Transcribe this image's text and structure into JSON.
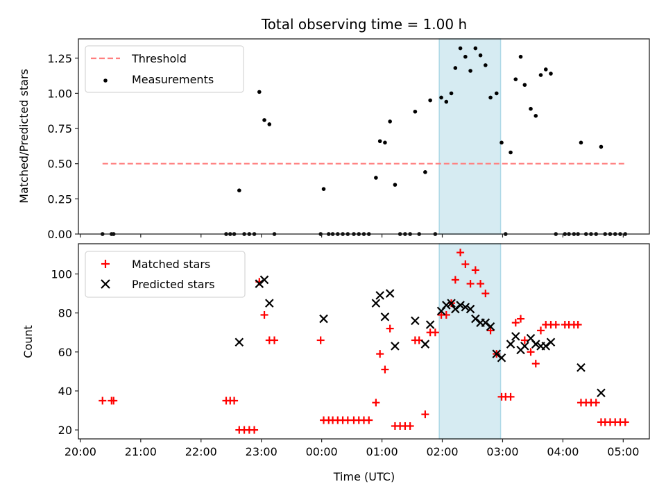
{
  "chart_data": [
    {
      "panel": "top",
      "type": "scatter",
      "title": "Total observing time = 1.00 h",
      "xlabel": "",
      "ylabel": "Matched/Predicted stars",
      "x_range": [
        "19:58",
        "05:26"
      ],
      "ylim": [
        0,
        1.387
      ],
      "yticks": [
        0,
        0.25,
        0.5,
        0.75,
        1.0,
        1.25
      ],
      "ytick_labels": [
        "0.00",
        "0.25",
        "0.50",
        "0.75",
        "1.00",
        "1.25"
      ],
      "xticks": [
        "20:00",
        "21:00",
        "22:00",
        "23:00",
        "00:00",
        "01:00",
        "02:00",
        "03:00",
        "04:00",
        "05:00"
      ],
      "xtick_labels_visible": false,
      "grid": false,
      "legend": {
        "placement": "top-left",
        "entries": [
          {
            "label": "Threshold",
            "marker": "dashed-line",
            "color": "#ff7f7f"
          },
          {
            "label": "Measurements",
            "marker": "dot",
            "color": "#000000"
          }
        ]
      },
      "threshold": {
        "value": 0.5,
        "x_start": "20:22",
        "x_end": "05:02",
        "color": "#ff7f7f"
      },
      "highlight_span": {
        "x_start": "01:57",
        "x_end": "02:58",
        "color": "#add8e6"
      },
      "series": [
        {
          "name": "Measurements",
          "color": "#000000",
          "points": [
            [
              "20:22",
              0
            ],
            [
              "20:31",
              0
            ],
            [
              "20:33",
              0
            ],
            [
              "22:25",
              0
            ],
            [
              "22:29",
              0
            ],
            [
              "22:33",
              0
            ],
            [
              "22:38",
              0.31
            ],
            [
              "22:43",
              0
            ],
            [
              "22:48",
              0
            ],
            [
              "22:53",
              0
            ],
            [
              "22:58",
              1.01
            ],
            [
              "23:03",
              0.81
            ],
            [
              "23:08",
              0.78
            ],
            [
              "23:13",
              0
            ],
            [
              "23:59",
              0
            ],
            [
              "00:02",
              0.32
            ],
            [
              "00:07",
              0
            ],
            [
              "00:11",
              0
            ],
            [
              "00:16",
              0
            ],
            [
              "00:21",
              0
            ],
            [
              "00:26",
              0
            ],
            [
              "00:32",
              0
            ],
            [
              "00:37",
              0
            ],
            [
              "00:42",
              0
            ],
            [
              "00:47",
              0
            ],
            [
              "00:54",
              0.4
            ],
            [
              "00:58",
              0.66
            ],
            [
              "01:03",
              0.65
            ],
            [
              "01:08",
              0.8
            ],
            [
              "01:13",
              0.35
            ],
            [
              "01:18",
              0
            ],
            [
              "01:23",
              0
            ],
            [
              "01:28",
              0
            ],
            [
              "01:33",
              0.87
            ],
            [
              "01:37",
              0
            ],
            [
              "01:43",
              0.44
            ],
            [
              "01:48",
              0.95
            ],
            [
              "01:53",
              0
            ],
            [
              "01:59",
              0.97
            ],
            [
              "02:04",
              0.94
            ],
            [
              "02:09",
              1.0
            ],
            [
              "02:13",
              1.18
            ],
            [
              "02:18",
              1.32
            ],
            [
              "02:23",
              1.26
            ],
            [
              "02:28",
              1.16
            ],
            [
              "02:33",
              1.32
            ],
            [
              "02:38",
              1.27
            ],
            [
              "02:43",
              1.2
            ],
            [
              "02:48",
              0.97
            ],
            [
              "02:54",
              1.0
            ],
            [
              "02:59",
              0.65
            ],
            [
              "03:03",
              0
            ],
            [
              "03:08",
              0.58
            ],
            [
              "03:13",
              1.1
            ],
            [
              "03:18",
              1.26
            ],
            [
              "03:22",
              1.06
            ],
            [
              "03:28",
              0.89
            ],
            [
              "03:33",
              0.84
            ],
            [
              "03:38",
              1.13
            ],
            [
              "03:43",
              1.17
            ],
            [
              "03:48",
              1.14
            ],
            [
              "03:53",
              0
            ],
            [
              "04:02",
              0
            ],
            [
              "04:06",
              0
            ],
            [
              "04:11",
              0
            ],
            [
              "04:15",
              0
            ],
            [
              "04:18",
              0.65
            ],
            [
              "04:23",
              0
            ],
            [
              "04:28",
              0
            ],
            [
              "04:33",
              0
            ],
            [
              "04:38",
              0.62
            ],
            [
              "04:42",
              0
            ],
            [
              "04:47",
              0
            ],
            [
              "04:52",
              0
            ],
            [
              "04:57",
              0
            ],
            [
              "05:02",
              0
            ]
          ]
        }
      ]
    },
    {
      "panel": "bottom",
      "type": "scatter",
      "title": "",
      "xlabel": "Time (UTC)",
      "ylabel": "Count",
      "x_range": [
        "19:58",
        "05:26"
      ],
      "ylim": [
        15.4,
        115.5
      ],
      "yticks": [
        20,
        40,
        60,
        80,
        100
      ],
      "ytick_labels": [
        "20",
        "40",
        "60",
        "80",
        "100"
      ],
      "xticks": [
        "20:00",
        "21:00",
        "22:00",
        "23:00",
        "00:00",
        "01:00",
        "02:00",
        "03:00",
        "04:00",
        "05:00"
      ],
      "xtick_labels": [
        "20:00",
        "21:00",
        "22:00",
        "23:00",
        "00:00",
        "01:00",
        "02:00",
        "03:00",
        "04:00",
        "05:00"
      ],
      "grid": false,
      "legend": {
        "placement": "top-left",
        "entries": [
          {
            "label": "Matched stars",
            "marker": "plus",
            "color": "#ff0000"
          },
          {
            "label": "Predicted stars",
            "marker": "x",
            "color": "#000000"
          }
        ]
      },
      "highlight_span": {
        "x_start": "01:57",
        "x_end": "02:58",
        "color": "#add8e6"
      },
      "series": [
        {
          "name": "Matched stars",
          "marker": "plus",
          "color": "#ff0000",
          "points": [
            [
              "20:22",
              35
            ],
            [
              "20:31",
              35
            ],
            [
              "20:33",
              35
            ],
            [
              "22:25",
              35
            ],
            [
              "22:29",
              35
            ],
            [
              "22:33",
              35
            ],
            [
              "22:38",
              20
            ],
            [
              "22:43",
              20
            ],
            [
              "22:48",
              20
            ],
            [
              "22:53",
              20
            ],
            [
              "22:58",
              96
            ],
            [
              "23:03",
              79
            ],
            [
              "23:08",
              66
            ],
            [
              "23:13",
              66
            ],
            [
              "23:59",
              66
            ],
            [
              "00:02",
              25
            ],
            [
              "00:07",
              25
            ],
            [
              "00:11",
              25
            ],
            [
              "00:16",
              25
            ],
            [
              "00:21",
              25
            ],
            [
              "00:26",
              25
            ],
            [
              "00:32",
              25
            ],
            [
              "00:37",
              25
            ],
            [
              "00:42",
              25
            ],
            [
              "00:47",
              25
            ],
            [
              "00:54",
              34
            ],
            [
              "00:58",
              59
            ],
            [
              "01:03",
              51
            ],
            [
              "01:08",
              72
            ],
            [
              "01:13",
              22
            ],
            [
              "01:18",
              22
            ],
            [
              "01:23",
              22
            ],
            [
              "01:28",
              22
            ],
            [
              "01:33",
              66
            ],
            [
              "01:37",
              66
            ],
            [
              "01:43",
              28
            ],
            [
              "01:48",
              70
            ],
            [
              "01:53",
              70
            ],
            [
              "01:59",
              79
            ],
            [
              "02:04",
              79
            ],
            [
              "02:09",
              85
            ],
            [
              "02:13",
              97
            ],
            [
              "02:18",
              111
            ],
            [
              "02:23",
              105
            ],
            [
              "02:28",
              95
            ],
            [
              "02:33",
              102
            ],
            [
              "02:38",
              95
            ],
            [
              "02:43",
              90
            ],
            [
              "02:48",
              71
            ],
            [
              "02:54",
              59
            ],
            [
              "02:59",
              37
            ],
            [
              "03:03",
              37
            ],
            [
              "03:08",
              37
            ],
            [
              "03:13",
              75
            ],
            [
              "03:18",
              77
            ],
            [
              "03:22",
              66
            ],
            [
              "03:28",
              60
            ],
            [
              "03:33",
              54
            ],
            [
              "03:38",
              71
            ],
            [
              "03:43",
              74
            ],
            [
              "03:48",
              74
            ],
            [
              "03:53",
              74
            ],
            [
              "04:02",
              74
            ],
            [
              "04:06",
              74
            ],
            [
              "04:11",
              74
            ],
            [
              "04:15",
              74
            ],
            [
              "04:18",
              34
            ],
            [
              "04:23",
              34
            ],
            [
              "04:28",
              34
            ],
            [
              "04:33",
              34
            ],
            [
              "04:38",
              24
            ],
            [
              "04:42",
              24
            ],
            [
              "04:47",
              24
            ],
            [
              "04:52",
              24
            ],
            [
              "04:57",
              24
            ],
            [
              "05:02",
              24
            ]
          ]
        },
        {
          "name": "Predicted stars",
          "marker": "x",
          "color": "#000000",
          "points": [
            [
              "22:38",
              65
            ],
            [
              "22:58",
              95
            ],
            [
              "23:03",
              97
            ],
            [
              "23:08",
              85
            ],
            [
              "00:02",
              77
            ],
            [
              "00:54",
              85
            ],
            [
              "00:58",
              89
            ],
            [
              "01:03",
              78
            ],
            [
              "01:08",
              90
            ],
            [
              "01:13",
              63
            ],
            [
              "01:33",
              76
            ],
            [
              "01:43",
              64
            ],
            [
              "01:48",
              74
            ],
            [
              "01:59",
              81
            ],
            [
              "02:04",
              84
            ],
            [
              "02:09",
              85
            ],
            [
              "02:13",
              82
            ],
            [
              "02:18",
              84
            ],
            [
              "02:23",
              83
            ],
            [
              "02:28",
              82
            ],
            [
              "02:33",
              77
            ],
            [
              "02:38",
              75
            ],
            [
              "02:43",
              75
            ],
            [
              "02:48",
              73
            ],
            [
              "02:54",
              59
            ],
            [
              "02:59",
              57
            ],
            [
              "03:08",
              64
            ],
            [
              "03:13",
              68
            ],
            [
              "03:18",
              61
            ],
            [
              "03:22",
              63
            ],
            [
              "03:28",
              67
            ],
            [
              "03:33",
              64
            ],
            [
              "03:38",
              63
            ],
            [
              "03:43",
              63
            ],
            [
              "03:48",
              65
            ],
            [
              "04:18",
              52
            ],
            [
              "04:38",
              39
            ]
          ]
        }
      ]
    }
  ]
}
